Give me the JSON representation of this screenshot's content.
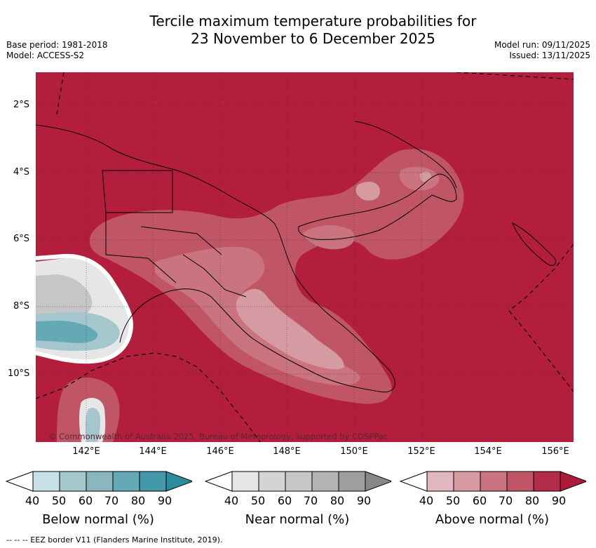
{
  "title": {
    "line1": "Tercile maximum temperature probabilities for",
    "line2": "23 November to 6 December 2025"
  },
  "meta": {
    "base_period": "Base period: 1981-2018",
    "model": "Model: ACCESS-S2",
    "model_run": "Model run: 09/11/2025",
    "issued": "Issued: 13/11/2025"
  },
  "map": {
    "background_category": "Above normal",
    "background_color": "#b31e3d",
    "copyright": "© Commonwealth of Australia 2025, Bureau of Meteorology, supported by COSPPac",
    "lat_labels": [
      "2°S",
      "4°S",
      "6°S",
      "8°S",
      "10°S"
    ],
    "lon_labels": [
      "142°E",
      "144°E",
      "146°E",
      "148°E",
      "150°E",
      "152°E",
      "154°E",
      "156°E"
    ]
  },
  "legend": {
    "ticks": [
      "40",
      "50",
      "60",
      "70",
      "80",
      "90"
    ],
    "below": {
      "title": "Below normal (%)",
      "colors": [
        "#ffffff",
        "#c7e1e6",
        "#a3c7cd",
        "#8ab6c0",
        "#65a8b6",
        "#4399a9",
        "#2c8c9c"
      ]
    },
    "near": {
      "title": "Near normal (%)",
      "colors": [
        "#ffffff",
        "#e6e6e6",
        "#d4d4d4",
        "#c6c6c6",
        "#b3b3b3",
        "#9e9e9e",
        "#878787"
      ]
    },
    "above": {
      "title": "Above normal (%)",
      "colors": [
        "#ffffff",
        "#e1b7bf",
        "#d69aa3",
        "#c9747f",
        "#c05665",
        "#b12c48",
        "#ad1a3a"
      ]
    }
  },
  "footer": "--  --  -- EEZ border V11 (Flanders Marine Institute, 2019)."
}
